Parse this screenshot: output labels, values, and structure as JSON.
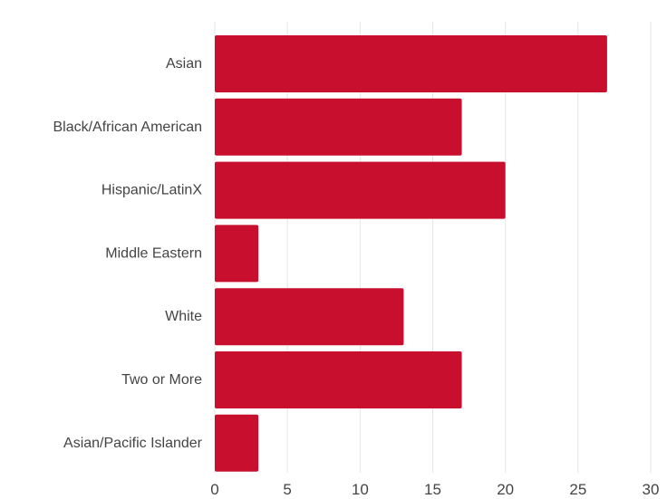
{
  "chart_data": {
    "type": "bar",
    "orientation": "horizontal",
    "categories": [
      "Asian",
      "Black/African American",
      "Hispanic/LatinX",
      "Middle Eastern",
      "White",
      "Two or More",
      "Asian/Pacific Islander"
    ],
    "values": [
      27,
      17,
      20,
      3,
      13,
      17,
      3
    ],
    "title": "",
    "xlabel": "",
    "ylabel": "",
    "xlim": [
      0,
      30
    ],
    "x_ticks": [
      0,
      5,
      10,
      15,
      20,
      25,
      30
    ],
    "grid": "vertical",
    "legend": "none",
    "colors": {
      "bar": "#c8102e",
      "grid": "#e6e6e6",
      "text": "#444444"
    }
  }
}
